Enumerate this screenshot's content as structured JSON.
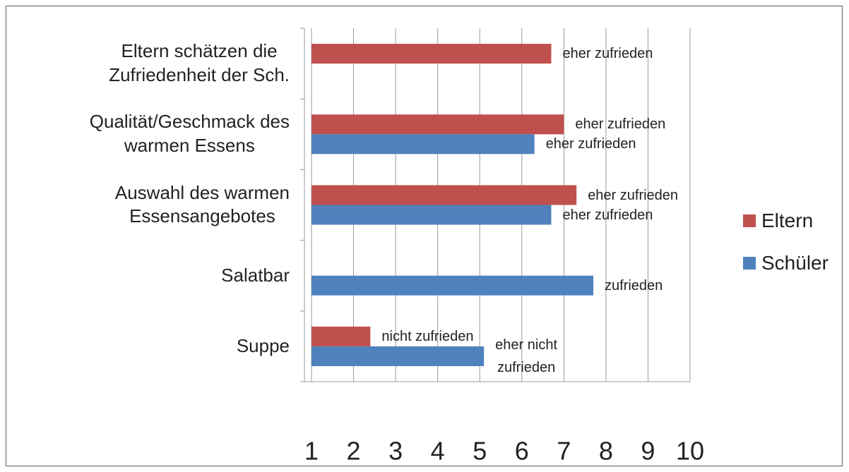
{
  "chart_data": {
    "type": "hbar",
    "categories": [
      "Eltern schätzen die\nZufriedenheit der Sch.",
      "Qualität/Geschmack des\nwarmen Essens",
      "Auswahl des warmen\nEssensangebotes",
      "Salatbar",
      "Suppe"
    ],
    "series": [
      {
        "name": "Eltern",
        "color": "#c0504d",
        "values": [
          6.7,
          7.0,
          7.3,
          null,
          2.4
        ],
        "value_labels": [
          "eher zufrieden",
          "eher zufrieden",
          "eher zufrieden",
          null,
          "nicht zufrieden"
        ]
      },
      {
        "name": "Schüler",
        "color": "#4f81bd",
        "values": [
          null,
          6.3,
          6.7,
          7.7,
          5.1
        ],
        "value_labels": [
          null,
          "eher zufrieden",
          "eher zufrieden",
          "zufrieden",
          "eher nicht\nzufrieden"
        ]
      }
    ],
    "xlim": [
      1,
      10
    ],
    "xticks": [
      1,
      2,
      3,
      4,
      5,
      6,
      7,
      8,
      9,
      10
    ],
    "grid": true,
    "legend": "right"
  }
}
